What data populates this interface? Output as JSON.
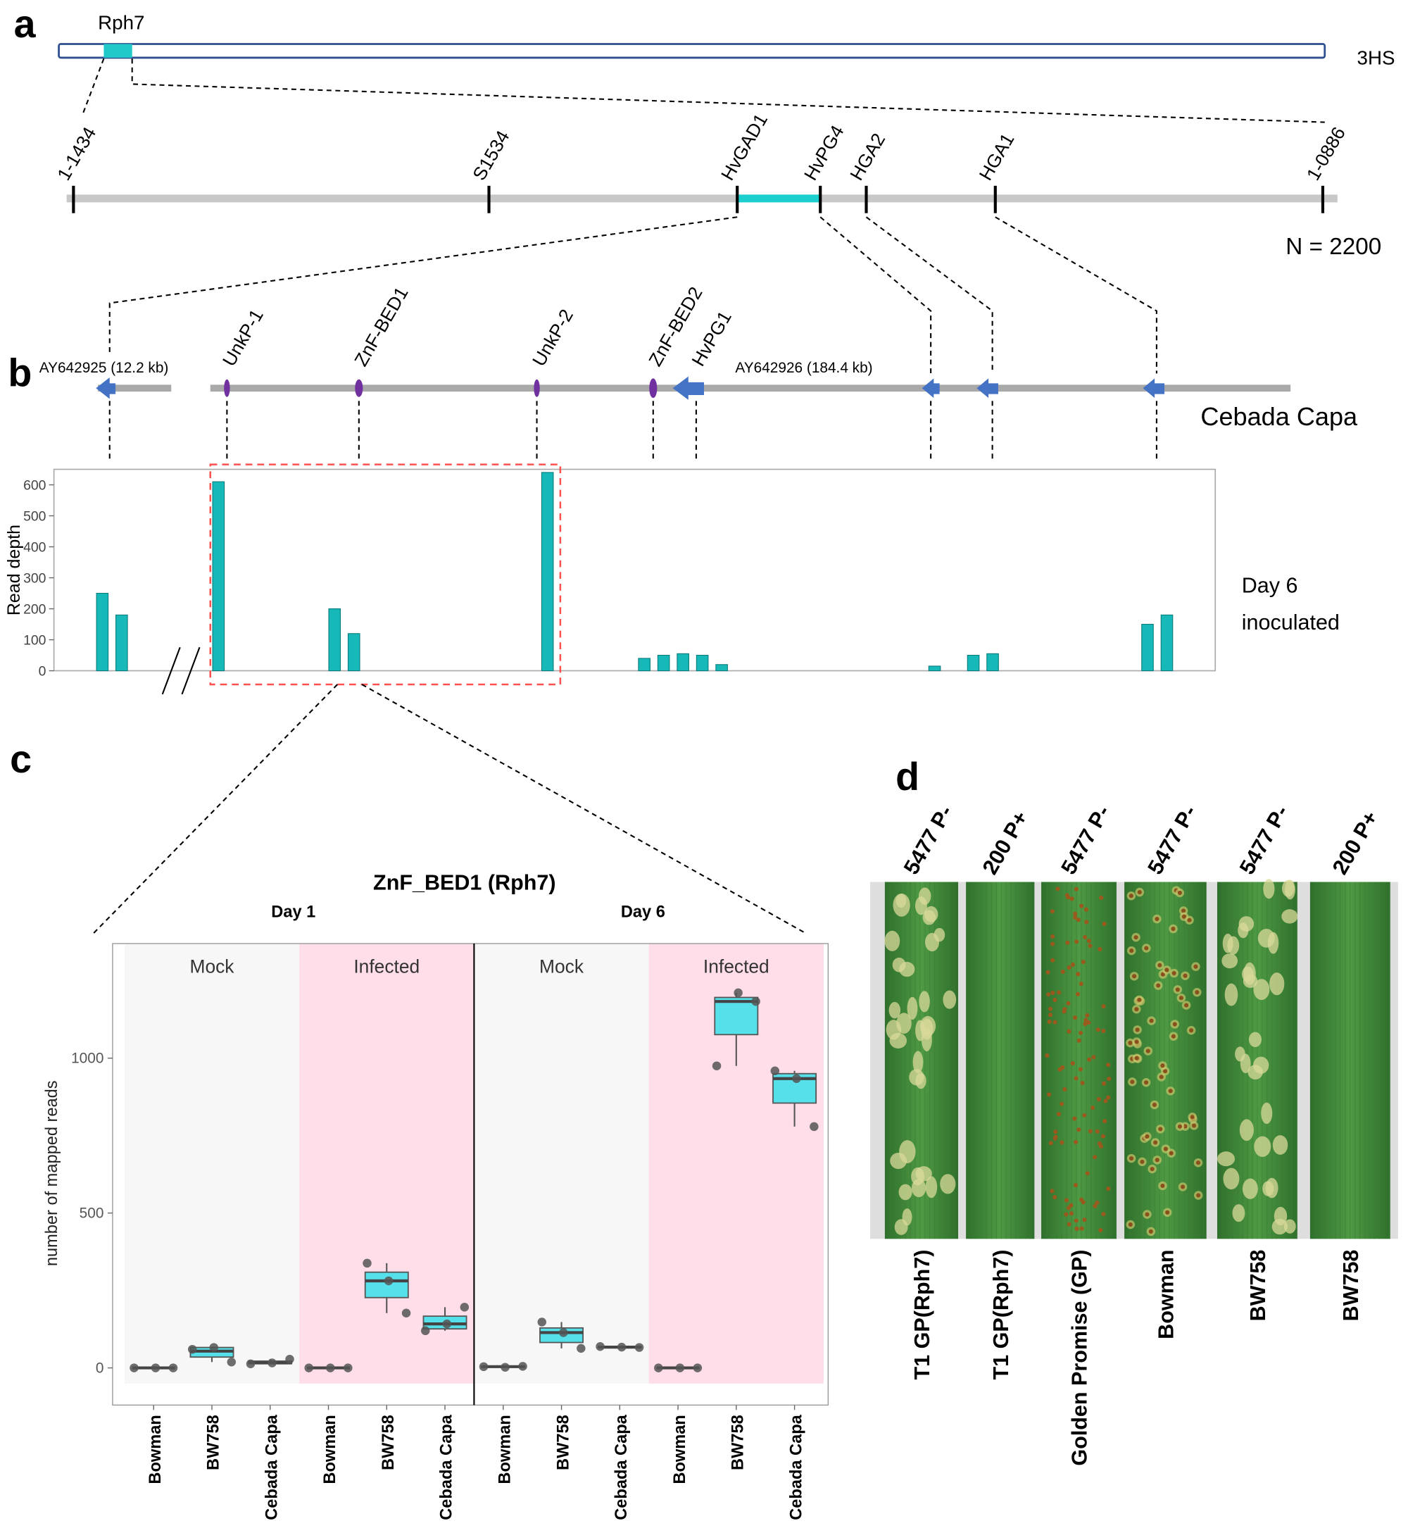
{
  "panel_a": {
    "label": "a",
    "locus": "Rph7",
    "arm": "3HS",
    "markers": [
      "1-1434",
      "S1534",
      "HvGAD1",
      "HvPG4",
      "HGA2",
      "HGA1",
      "1-0886"
    ],
    "population": "N = 2200"
  },
  "panel_b": {
    "label": "b",
    "contigs": [
      "AY642925 (12.2 kb)",
      "AY642926 (184.4 kb)"
    ],
    "genes": [
      "UnkP-1",
      "ZnF-BED1",
      "UnkP-2",
      "ZnF-BED2",
      "HvPG1"
    ],
    "cultivar": "Cebada Capa",
    "condition": [
      "Day 6",
      "inoculated"
    ]
  },
  "panel_c": {
    "label": "c"
  },
  "panel_d": {
    "label": "d",
    "isolates": [
      "5477 P-",
      "200 P+",
      "5477 P-",
      "5477 P-",
      "5477 P-",
      "200 P+"
    ],
    "lines": [
      "T1 GP(Rph7)",
      "T1 GP(Rph7)",
      "Golden Promise (GP)",
      "Bowman",
      "BW758",
      "BW758"
    ]
  },
  "chart_data": [
    {
      "type": "bar",
      "ylabel": "Read depth",
      "color": "#16b8b8",
      "ylim": [
        0,
        650
      ],
      "yticks": [
        0,
        100,
        200,
        300,
        400,
        500,
        600
      ],
      "categories": [
        null,
        null,
        null,
        null,
        null,
        null,
        null,
        null,
        null,
        null,
        null,
        null,
        null,
        null,
        null,
        null,
        null,
        null,
        null,
        null,
        null,
        null,
        null,
        null,
        null,
        null,
        null,
        null,
        null,
        null,
        null,
        null,
        null,
        null,
        null,
        null,
        null,
        null,
        null,
        null,
        null,
        null,
        null,
        null,
        null,
        null,
        null,
        null,
        null,
        null,
        null,
        null,
        null,
        null,
        null,
        null,
        null,
        null,
        null,
        null
      ],
      "values": [
        0,
        0,
        250,
        180,
        0,
        0,
        0,
        0,
        610,
        0,
        0,
        0,
        0,
        0,
        200,
        120,
        0,
        0,
        0,
        0,
        0,
        0,
        0,
        0,
        0,
        640,
        0,
        0,
        0,
        0,
        40,
        50,
        55,
        50,
        20,
        0,
        0,
        0,
        0,
        0,
        0,
        0,
        0,
        0,
        0,
        15,
        0,
        50,
        55,
        0,
        0,
        0,
        0,
        0,
        0,
        0,
        150,
        180,
        0,
        0
      ]
    },
    {
      "type": "box",
      "title": "ZnF_BED1 (Rph7)",
      "groups": [
        "Day 1",
        "Day 6"
      ],
      "panels": [
        "Mock",
        "Infected",
        "Mock",
        "Infected"
      ],
      "ylabel": "number of mapped reads",
      "color": "#55e0ea",
      "ylim": [
        -120,
        1370
      ],
      "yticks": [
        0,
        500,
        1000
      ],
      "categories": [
        "Bowman",
        "BW758",
        "Cebada Capa",
        "Bowman",
        "BW758",
        "Cebada Capa",
        "Bowman",
        "BW758",
        "Cebada Capa",
        "Bowman",
        "BW758",
        "Cebada Capa"
      ],
      "boxes": [
        {
          "min": 0,
          "q1": 0,
          "median": 0,
          "q3": 0,
          "max": 0,
          "points": [
            0,
            0,
            0
          ]
        },
        {
          "min": 19,
          "q1": 35,
          "median": 54,
          "q3": 66,
          "max": 66,
          "points": [
            60,
            66,
            19
          ]
        },
        {
          "min": 13,
          "q1": 14,
          "median": 16,
          "q3": 22,
          "max": 28,
          "points": [
            13,
            16,
            28
          ]
        },
        {
          "min": 0,
          "q1": 0,
          "median": 0,
          "q3": 0,
          "max": 0,
          "points": [
            0,
            0,
            0
          ]
        },
        {
          "min": 177,
          "q1": 227,
          "median": 281,
          "q3": 309,
          "max": 338,
          "points": [
            338,
            281,
            177
          ]
        },
        {
          "min": 120,
          "q1": 126,
          "median": 142,
          "q3": 167,
          "max": 196,
          "points": [
            120,
            142,
            196
          ]
        },
        {
          "min": 2,
          "q1": 2,
          "median": 4,
          "q3": 5,
          "max": 5,
          "points": [
            4,
            2,
            5
          ]
        },
        {
          "min": 63,
          "q1": 82,
          "median": 114,
          "q3": 129,
          "max": 148,
          "points": [
            148,
            114,
            63
          ]
        },
        {
          "min": 66,
          "q1": 66,
          "median": 67,
          "q3": 69,
          "max": 69,
          "points": [
            69,
            67,
            66
          ]
        },
        {
          "min": 0,
          "q1": 0,
          "median": 0,
          "q3": 0,
          "max": 0,
          "points": [
            0,
            0,
            0
          ]
        },
        {
          "min": 975,
          "q1": 1076,
          "median": 1183,
          "q3": 1196,
          "max": 1211,
          "points": [
            975,
            1211,
            1183
          ]
        },
        {
          "min": 779,
          "q1": 855,
          "median": 934,
          "q3": 950,
          "max": 959,
          "points": [
            959,
            934,
            779
          ]
        }
      ]
    }
  ]
}
